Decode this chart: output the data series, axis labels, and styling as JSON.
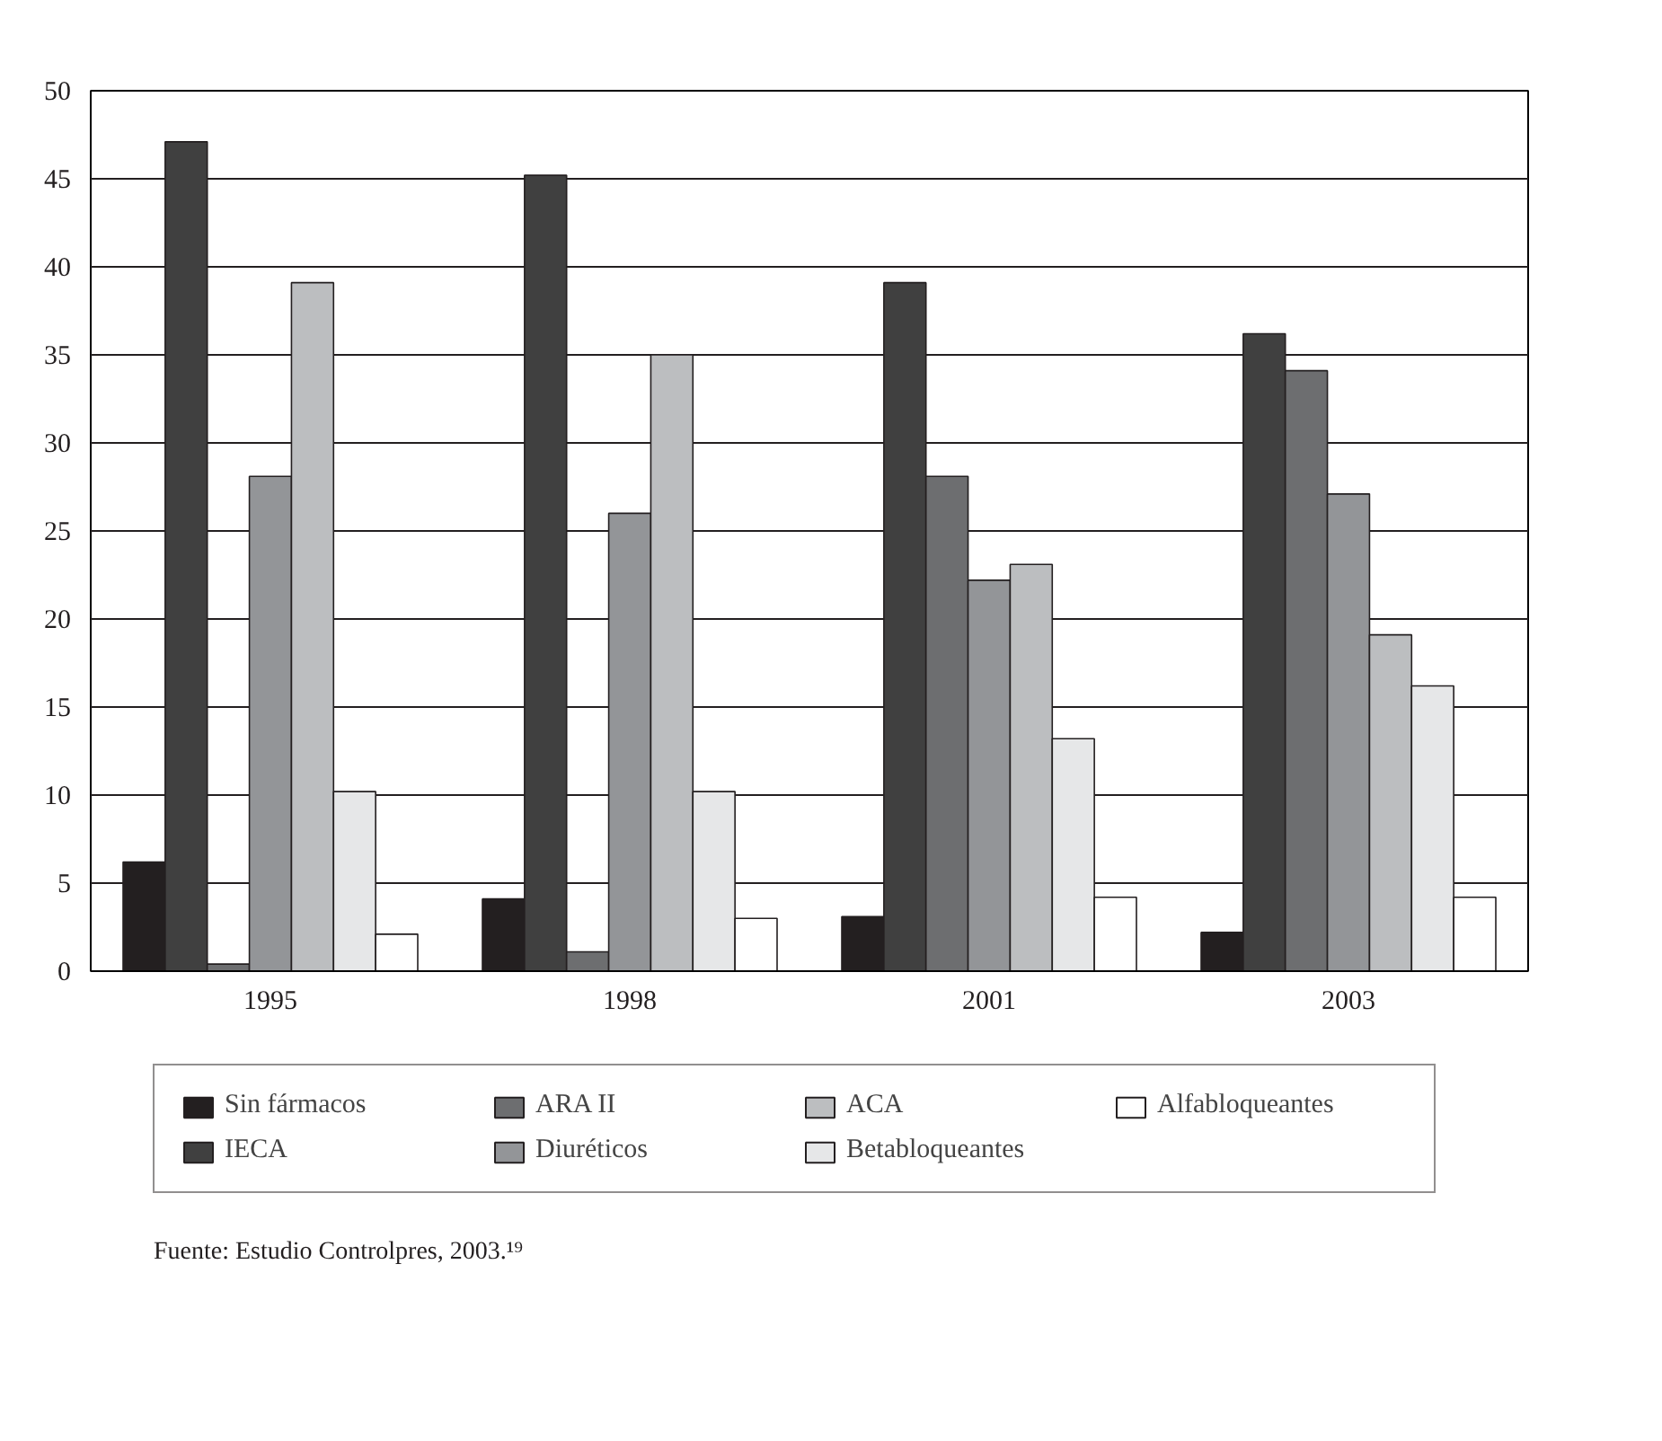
{
  "chart_data": {
    "type": "bar",
    "categories": [
      "1995",
      "1998",
      "2001",
      "2003"
    ],
    "series": [
      {
        "name": "Sin fármacos",
        "color": "#231f20",
        "values": [
          6.2,
          4.1,
          3.1,
          2.2
        ]
      },
      {
        "name": "IECA",
        "color": "#404040",
        "values": [
          47.1,
          45.2,
          39.1,
          36.2
        ]
      },
      {
        "name": "ARA II",
        "color": "#6d6e70",
        "values": [
          0.4,
          1.1,
          28.1,
          34.1
        ]
      },
      {
        "name": "Diuréticos",
        "color": "#939598",
        "values": [
          28.1,
          26.0,
          22.2,
          27.1
        ]
      },
      {
        "name": "ACA",
        "color": "#bcbec0",
        "values": [
          39.1,
          35.0,
          23.1,
          19.1
        ]
      },
      {
        "name": "Betabloqueantes",
        "color": "#e6e7e8",
        "values": [
          10.2,
          10.2,
          13.2,
          16.2
        ]
      },
      {
        "name": "Alfabloqueantes",
        "color": "#ffffff",
        "values": [
          2.1,
          3.0,
          4.2,
          4.2
        ]
      }
    ],
    "ylim": [
      0,
      50
    ],
    "yticks": [
      0,
      5,
      10,
      15,
      20,
      25,
      30,
      35,
      40,
      45,
      50
    ],
    "grid": "y",
    "legend": "bottom",
    "annotations": [
      "Fuente: Estudio Controlpres, 2003.¹⁹"
    ]
  }
}
